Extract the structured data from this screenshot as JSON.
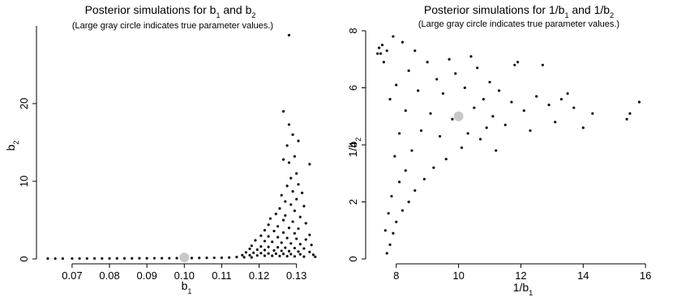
{
  "chart_data": [
    {
      "type": "scatter",
      "title": "Posterior simulations for b₁ and b₂",
      "title_parts": [
        "Posterior simulations for b",
        "1",
        " and b",
        "2"
      ],
      "subtitle": "(Large gray circle indicates true parameter values.)",
      "xlabel": "b₁",
      "xlabel_parts": [
        "b",
        "1"
      ],
      "ylabel": "b₂",
      "ylabel_parts": [
        "b",
        "2"
      ],
      "xlim": [
        0.062,
        0.137
      ],
      "ylim": [
        0,
        30
      ],
      "xticks": [
        0.07,
        0.08,
        0.09,
        0.1,
        0.11,
        0.12,
        0.13
      ],
      "xtick_labels": [
        "0.07",
        "0.08",
        "0.09",
        "0.10",
        "0.11",
        "0.12",
        "0.13"
      ],
      "yticks": [
        0,
        10,
        20
      ],
      "ytick_labels": [
        "0",
        "10",
        "20"
      ],
      "grid": false,
      "point_color": "#111111",
      "true_value": {
        "x": 0.1,
        "y": 0.2,
        "color": "#c8c8c8"
      },
      "points": [
        [
          0.128,
          28.8
        ],
        [
          0.1265,
          19.0
        ],
        [
          0.128,
          17.3
        ],
        [
          0.129,
          16.0
        ],
        [
          0.1305,
          15.2
        ],
        [
          0.1275,
          14.6
        ],
        [
          0.1295,
          13.2
        ],
        [
          0.128,
          12.4
        ],
        [
          0.1335,
          12.2
        ],
        [
          0.1265,
          12.8
        ],
        [
          0.13,
          11.0
        ],
        [
          0.1285,
          10.4
        ],
        [
          0.1305,
          9.6
        ],
        [
          0.1275,
          9.4
        ],
        [
          0.129,
          8.7
        ],
        [
          0.1315,
          8.5
        ],
        [
          0.126,
          8.2
        ],
        [
          0.13,
          7.7
        ],
        [
          0.127,
          7.4
        ],
        [
          0.1285,
          7.0
        ],
        [
          0.132,
          6.8
        ],
        [
          0.1255,
          6.5
        ],
        [
          0.1295,
          6.2
        ],
        [
          0.1245,
          5.8
        ],
        [
          0.127,
          5.6
        ],
        [
          0.131,
          5.4
        ],
        [
          0.123,
          5.2
        ],
        [
          0.1265,
          5.0
        ],
        [
          0.129,
          4.8
        ],
        [
          0.1325,
          4.6
        ],
        [
          0.1225,
          4.4
        ],
        [
          0.125,
          4.2
        ],
        [
          0.128,
          4.0
        ],
        [
          0.1305,
          3.9
        ],
        [
          0.1215,
          3.7
        ],
        [
          0.124,
          3.6
        ],
        [
          0.1265,
          3.4
        ],
        [
          0.1295,
          3.3
        ],
        [
          0.1335,
          3.1
        ],
        [
          0.1205,
          3.0
        ],
        [
          0.1225,
          2.9
        ],
        [
          0.125,
          2.8
        ],
        [
          0.1275,
          2.7
        ],
        [
          0.13,
          2.6
        ],
        [
          0.1325,
          2.5
        ],
        [
          0.119,
          2.4
        ],
        [
          0.1215,
          2.3
        ],
        [
          0.1235,
          2.2
        ],
        [
          0.126,
          2.1
        ],
        [
          0.1285,
          2.0
        ],
        [
          0.131,
          1.9
        ],
        [
          0.134,
          1.8
        ],
        [
          0.118,
          1.7
        ],
        [
          0.1205,
          1.6
        ],
        [
          0.1225,
          1.55
        ],
        [
          0.125,
          1.5
        ],
        [
          0.127,
          1.45
        ],
        [
          0.1295,
          1.4
        ],
        [
          0.132,
          1.35
        ],
        [
          0.1175,
          1.3
        ],
        [
          0.1195,
          1.2
        ],
        [
          0.1215,
          1.15
        ],
        [
          0.124,
          1.1
        ],
        [
          0.126,
          1.05
        ],
        [
          0.128,
          1.0
        ],
        [
          0.1305,
          0.95
        ],
        [
          0.1335,
          0.9
        ],
        [
          0.1165,
          0.85
        ],
        [
          0.1185,
          0.8
        ],
        [
          0.1205,
          0.75
        ],
        [
          0.1225,
          0.7
        ],
        [
          0.1245,
          0.68
        ],
        [
          0.1265,
          0.65
        ],
        [
          0.1285,
          0.62
        ],
        [
          0.131,
          0.6
        ],
        [
          0.1345,
          0.55
        ],
        [
          0.1155,
          0.5
        ],
        [
          0.1175,
          0.48
        ],
        [
          0.1195,
          0.45
        ],
        [
          0.1215,
          0.42
        ],
        [
          0.1235,
          0.4
        ],
        [
          0.1255,
          0.38
        ],
        [
          0.1275,
          0.35
        ],
        [
          0.1295,
          0.33
        ],
        [
          0.132,
          0.3
        ],
        [
          0.135,
          0.28
        ],
        [
          0.114,
          0.25
        ],
        [
          0.116,
          0.22
        ],
        [
          0.118,
          0.2
        ],
        [
          0.112,
          0.18
        ],
        [
          0.11,
          0.16
        ],
        [
          0.108,
          0.15
        ],
        [
          0.106,
          0.14
        ],
        [
          0.104,
          0.13
        ],
        [
          0.102,
          0.12
        ],
        [
          0.1,
          0.12
        ],
        [
          0.098,
          0.11
        ],
        [
          0.096,
          0.1
        ],
        [
          0.094,
          0.1
        ],
        [
          0.092,
          0.1
        ],
        [
          0.09,
          0.09
        ],
        [
          0.088,
          0.09
        ],
        [
          0.086,
          0.08
        ],
        [
          0.084,
          0.08
        ],
        [
          0.082,
          0.08
        ],
        [
          0.08,
          0.07
        ],
        [
          0.078,
          0.07
        ],
        [
          0.076,
          0.07
        ],
        [
          0.074,
          0.06
        ],
        [
          0.072,
          0.06
        ],
        [
          0.07,
          0.06
        ],
        [
          0.0655,
          0.05
        ],
        [
          0.0635,
          0.05
        ],
        [
          0.0675,
          0.05
        ]
      ]
    },
    {
      "type": "scatter",
      "title": "Posterior simulations for 1/b₁ and 1/b₂",
      "title_parts": [
        "Posterior simulations for 1/b",
        "1",
        " and 1/b",
        "2"
      ],
      "subtitle": "(Large gray circle indicates true parameter values.)",
      "xlabel": "1/b₁",
      "xlabel_parts": [
        "1/b",
        "1"
      ],
      "ylabel": "1/b₂",
      "ylabel_parts": [
        "1/b",
        "2"
      ],
      "xlim": [
        7.2,
        16.1
      ],
      "ylim": [
        0,
        8
      ],
      "xticks": [
        8,
        10,
        12,
        14,
        16
      ],
      "xtick_labels": [
        "8",
        "10",
        "12",
        "14",
        "16"
      ],
      "yticks": [
        0,
        2,
        4,
        6,
        8
      ],
      "ytick_labels": [
        "0",
        "2",
        "4",
        "6",
        "8"
      ],
      "grid": false,
      "point_color": "#111111",
      "true_value": {
        "x": 10.0,
        "y": 5.0,
        "color": "#c8c8c8"
      },
      "points": [
        [
          15.8,
          5.5
        ],
        [
          15.5,
          5.1
        ],
        [
          15.4,
          4.9
        ],
        [
          14.3,
          5.1
        ],
        [
          14.0,
          4.6
        ],
        [
          13.7,
          5.3
        ],
        [
          13.5,
          5.8
        ],
        [
          13.3,
          5.6
        ],
        [
          13.1,
          4.8
        ],
        [
          12.9,
          5.4
        ],
        [
          12.7,
          6.8
        ],
        [
          12.5,
          5.7
        ],
        [
          12.3,
          4.5
        ],
        [
          12.1,
          5.2
        ],
        [
          11.9,
          6.9
        ],
        [
          11.8,
          6.8
        ],
        [
          11.7,
          5.5
        ],
        [
          11.5,
          4.7
        ],
        [
          11.3,
          5.9
        ],
        [
          11.2,
          3.8
        ],
        [
          11.1,
          5.0
        ],
        [
          11.0,
          6.2
        ],
        [
          10.9,
          4.6
        ],
        [
          10.8,
          5.6
        ],
        [
          10.7,
          4.2
        ],
        [
          10.6,
          6.7
        ],
        [
          10.5,
          5.3
        ],
        [
          10.4,
          7.1
        ],
        [
          10.3,
          4.4
        ],
        [
          10.2,
          6.0
        ],
        [
          10.1,
          3.9
        ],
        [
          9.9,
          6.5
        ],
        [
          9.8,
          4.9
        ],
        [
          9.7,
          7.0
        ],
        [
          9.6,
          3.5
        ],
        [
          9.5,
          5.8
        ],
        [
          9.4,
          4.3
        ],
        [
          9.3,
          6.3
        ],
        [
          9.2,
          3.2
        ],
        [
          9.1,
          5.1
        ],
        [
          9.0,
          6.9
        ],
        [
          8.9,
          2.8
        ],
        [
          8.8,
          4.5
        ],
        [
          8.7,
          5.9
        ],
        [
          8.6,
          2.4
        ],
        [
          8.6,
          7.3
        ],
        [
          8.5,
          3.8
        ],
        [
          8.4,
          6.6
        ],
        [
          8.4,
          2.0
        ],
        [
          8.3,
          5.2
        ],
        [
          8.3,
          3.1
        ],
        [
          8.2,
          7.6
        ],
        [
          8.2,
          1.7
        ],
        [
          8.1,
          4.4
        ],
        [
          8.1,
          2.7
        ],
        [
          8.0,
          6.1
        ],
        [
          8.0,
          1.3
        ],
        [
          7.95,
          3.6
        ],
        [
          7.9,
          0.9
        ],
        [
          7.9,
          7.8
        ],
        [
          7.85,
          2.2
        ],
        [
          7.8,
          0.5
        ],
        [
          7.8,
          5.6
        ],
        [
          7.75,
          1.6
        ],
        [
          7.7,
          0.2
        ],
        [
          7.7,
          7.3
        ],
        [
          7.65,
          1.0
        ],
        [
          7.6,
          6.9
        ],
        [
          7.55,
          7.5
        ],
        [
          7.5,
          7.2
        ],
        [
          7.45,
          7.4
        ],
        [
          7.4,
          7.2
        ]
      ]
    }
  ]
}
